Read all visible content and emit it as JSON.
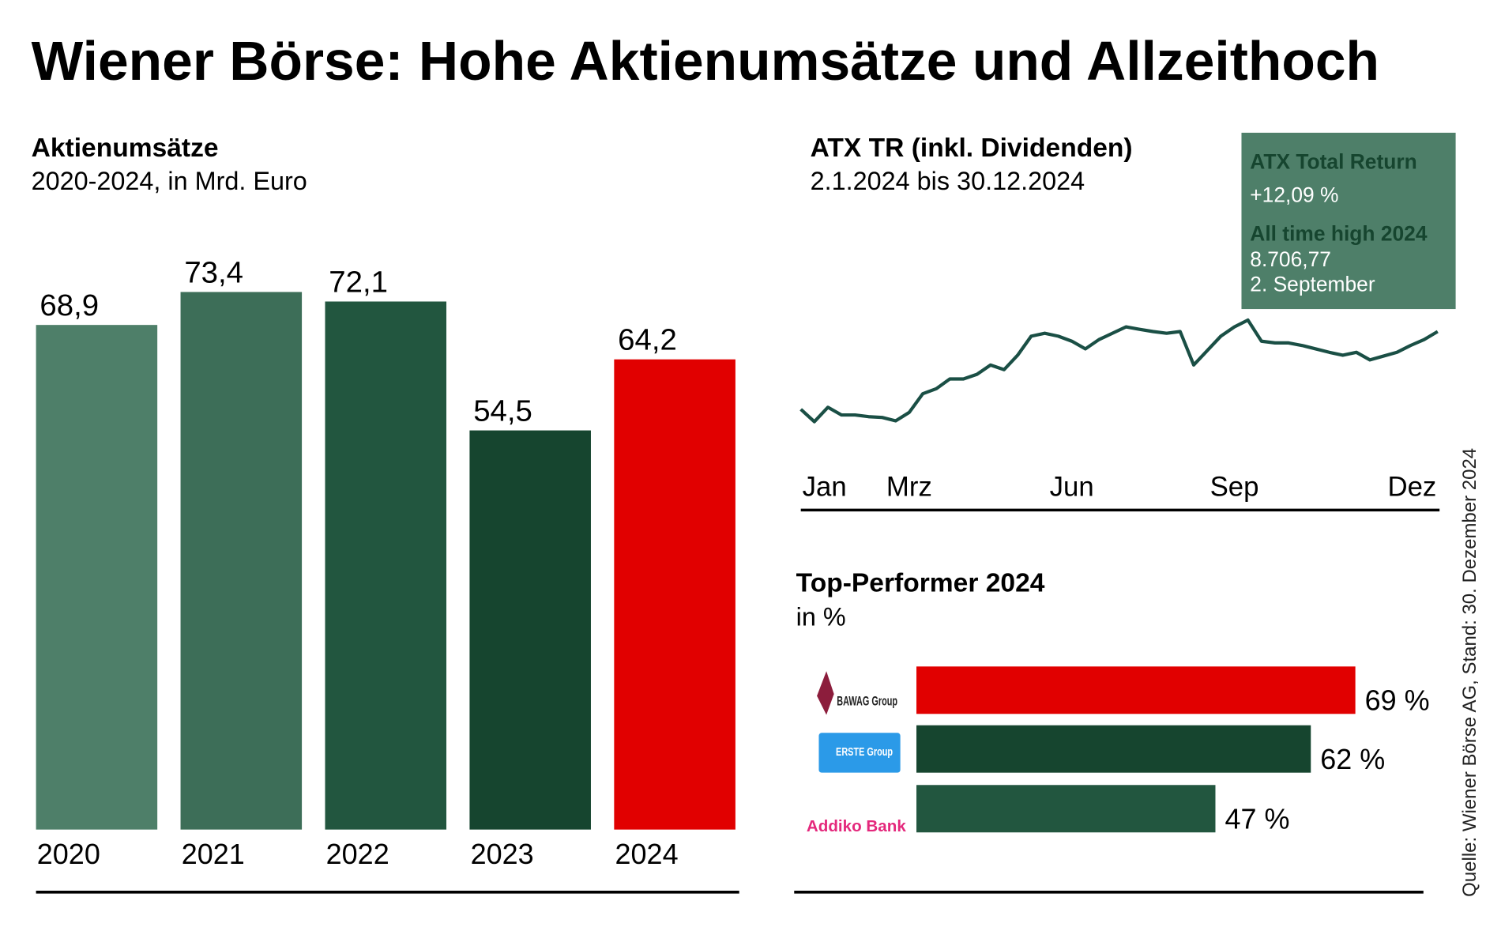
{
  "title": "Wiener Börse: Hohe Aktienumsätze und Allzeithoch",
  "source": "Quelle: Wiener Börse AG, Stand: 30. Dezember 2024",
  "chart_data": [
    {
      "type": "bar",
      "title": "Aktienumsätze",
      "subtitle": "2020-2024, in Mrd. Euro",
      "categories": [
        "2020",
        "2021",
        "2022",
        "2023",
        "2024"
      ],
      "values": [
        68.9,
        73.4,
        72.1,
        54.5,
        64.2
      ],
      "value_labels": [
        "68,9",
        "73,4",
        "72,1",
        "54,5",
        "64,2"
      ],
      "colors": [
        "#4e7f69",
        "#3d6e58",
        "#22563f",
        "#16452f",
        "#e10000"
      ],
      "ylim": [
        0,
        80
      ]
    },
    {
      "type": "line",
      "title": "ATX TR (inkl. Dividenden)",
      "subtitle": "2.1.2024 bis 30.12.2024",
      "categories": [
        "Jan",
        null,
        null,
        null,
        null,
        null,
        null,
        null,
        "Mrz",
        null,
        null,
        null,
        null,
        null,
        null,
        null,
        null,
        null,
        null,
        null,
        "Jun",
        null,
        null,
        null,
        null,
        null,
        null,
        null,
        null,
        null,
        null,
        null,
        "Sep",
        null,
        null,
        null,
        null,
        null,
        null,
        null,
        null,
        null,
        null,
        null,
        null,
        null,
        null,
        "Dez"
      ],
      "series": [
        {
          "name": "ATX TR",
          "color": "#1a4f45",
          "values": [
            7617,
            7470,
            7640,
            7550,
            7550,
            7530,
            7520,
            7480,
            7580,
            7800,
            7860,
            7975,
            7975,
            8030,
            8140,
            8085,
            8255,
            8480,
            8515,
            8480,
            8420,
            8330,
            8440,
            8515,
            8590,
            8560,
            8535,
            8515,
            8535,
            8140,
            8310,
            8480,
            8590,
            8670,
            8420,
            8400,
            8400,
            8370,
            8330,
            8290,
            8255,
            8290,
            8200,
            8245,
            8290,
            8370,
            8440,
            8535
          ]
        }
      ],
      "ylim": [
        7300,
        8800
      ],
      "annotations": [
        "ATX Total Return",
        "+12,09 %",
        "All time high 2024",
        "8.706,77",
        "2. September"
      ],
      "annotation_color": "#4e7f69"
    },
    {
      "type": "barh",
      "title": "Top-Performer 2024",
      "subtitle": "in %",
      "categories": [
        "BAWAG Group",
        "ERSTE Group",
        "Addiko Bank"
      ],
      "values": [
        69,
        62,
        47
      ],
      "value_labels": [
        "69 %",
        "62 %",
        "47 %"
      ],
      "colors": [
        "#e10000",
        "#16452f",
        "#22563f"
      ],
      "xlim": [
        0,
        80
      ]
    }
  ]
}
